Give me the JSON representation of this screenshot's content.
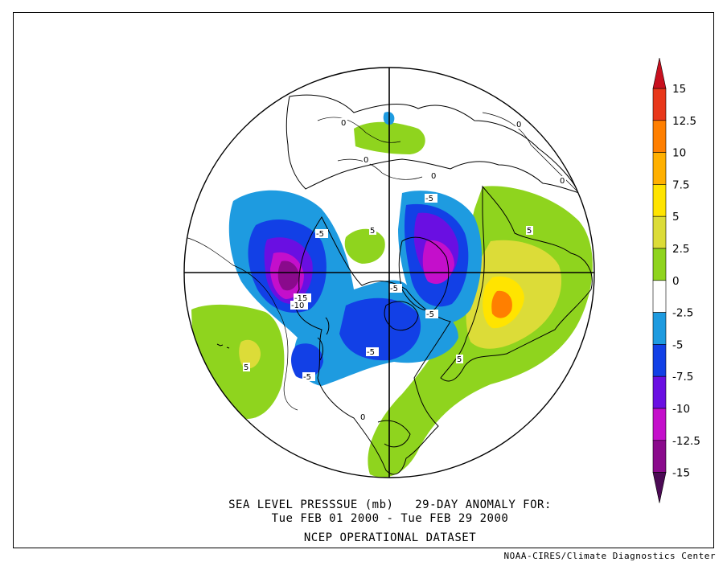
{
  "map": {
    "projection": "north polar stereographic",
    "variable": "sea level pressure anomaly",
    "units": "mb"
  },
  "caption": {
    "line1": "SEA LEVEL PRESSSUE (mb)   29-DAY ANOMALY FOR:",
    "line2": "Tue FEB 01 2000 - Tue FEB 29 2000",
    "line3": "NCEP OPERATIONAL DATASET"
  },
  "credit": "NOAA-CIRES/Climate Diagnostics Center",
  "colorbar": {
    "tick_labels": [
      "15",
      "12.5",
      "10",
      "7.5",
      "5",
      "2.5",
      "0",
      "-2.5",
      "-5",
      "-7.5",
      "-10",
      "-12.5",
      "-15"
    ],
    "bands": [
      {
        "range": [
          12.5,
          15
        ],
        "color": "#e8371a"
      },
      {
        "range": [
          10,
          12.5
        ],
        "color": "#ff7f00"
      },
      {
        "range": [
          7.5,
          10
        ],
        "color": "#ffb000"
      },
      {
        "range": [
          5,
          7.5
        ],
        "color": "#ffe400"
      },
      {
        "range": [
          2.5,
          5
        ],
        "color": "#dcdc38"
      },
      {
        "range": [
          0,
          2.5
        ],
        "color": "#8fd41e"
      },
      {
        "range": [
          -2.5,
          0
        ],
        "color": "#ffffff"
      },
      {
        "range": [
          -5,
          -2.5
        ],
        "color": "#1e9be0"
      },
      {
        "range": [
          -7.5,
          -5
        ],
        "color": "#1240e6"
      },
      {
        "range": [
          -10,
          -7.5
        ],
        "color": "#6a0fe2"
      },
      {
        "range": [
          -12.5,
          -10
        ],
        "color": "#c40fcb"
      },
      {
        "range": [
          -15,
          -12.5
        ],
        "color": "#8a0a8c"
      }
    ],
    "top_arrow_color": "#c8101e",
    "bottom_arrow_color": "#4c0a55"
  },
  "contour_labels": [
    "0",
    "0",
    "0",
    "0",
    "0",
    "0",
    "5",
    "5",
    "5",
    "5",
    "-5",
    "-5",
    "-5",
    "-5",
    "-5",
    "-5",
    "-10",
    "-15"
  ],
  "colors": {
    "land_outline": "#000000",
    "neutral": "#ffffff",
    "pos_2_5": "#8fd41e",
    "pos_5": "#dcdc38",
    "pos_7_5": "#ffe400",
    "pos_10": "#ff7f00",
    "neg_2_5": "#1e9be0",
    "neg_5": "#1240e6",
    "neg_7_5": "#6a0fe2",
    "neg_10": "#c40fcb",
    "neg_12_5": "#8a0a8c",
    "neg_15": "#4c0a55"
  }
}
